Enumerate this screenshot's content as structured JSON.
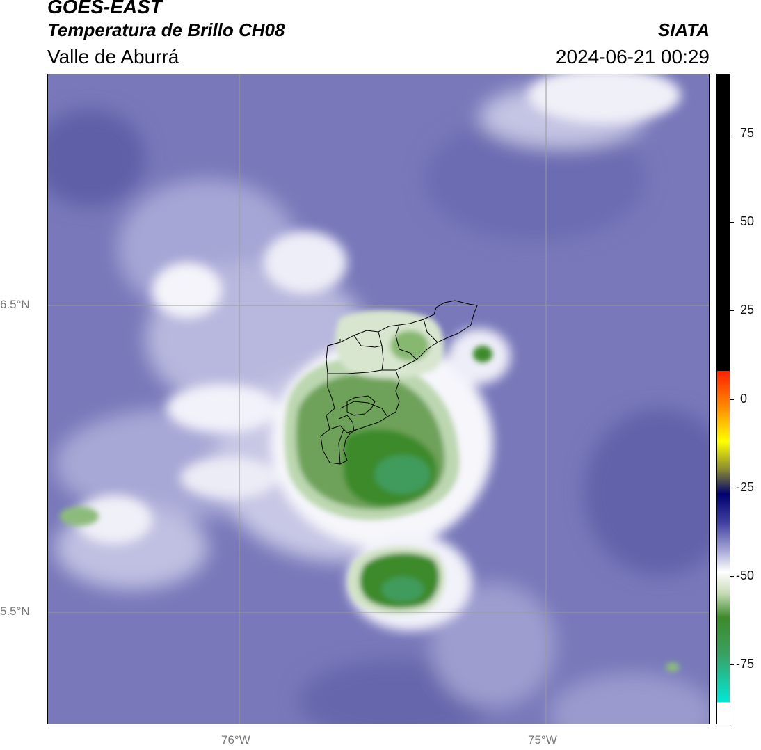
{
  "header": {
    "satellite": "GOES-EAST",
    "product": "Temperatura de Brillo CH08",
    "region": "Valle de Aburrá",
    "source": "SIATA",
    "timestamp": "2024-06-21 00:29"
  },
  "map": {
    "latitude_labels": [
      "6.5°N",
      "5.5°N"
    ],
    "longitude_labels": [
      "76°W",
      "75°W"
    ],
    "graticule": true,
    "boundaries": "black municipal outlines"
  },
  "colorbar": {
    "ticks": [
      "75",
      "50",
      "25",
      "0",
      "-25",
      "-50",
      "-75"
    ],
    "stops": [
      {
        "value": 92,
        "color": "#000000"
      },
      {
        "value": 8,
        "color": "#000000"
      },
      {
        "value": 8,
        "color": "#ff2000"
      },
      {
        "value": -2,
        "color": "#ff8800"
      },
      {
        "value": -12,
        "color": "#ffff00"
      },
      {
        "value": -20,
        "color": "#8a8a30"
      },
      {
        "value": -27,
        "color": "#000070"
      },
      {
        "value": -35,
        "color": "#4040a0"
      },
      {
        "value": -43,
        "color": "#a8a8d8"
      },
      {
        "value": -49,
        "color": "#ffffff"
      },
      {
        "value": -55,
        "color": "#c8dcb8"
      },
      {
        "value": -62,
        "color": "#3c8a2a"
      },
      {
        "value": -72,
        "color": "#3aa060"
      },
      {
        "value": -86,
        "color": "#00e8d8"
      },
      {
        "value": -86,
        "color": "#ffffff"
      },
      {
        "value": -92,
        "color": "#ffffff"
      }
    ],
    "range": [
      -92,
      92
    ]
  },
  "colors": {
    "background_cloud": "#7b7bbd",
    "cold_top": "#4a8a35",
    "graticule": "#9a9a9a"
  }
}
